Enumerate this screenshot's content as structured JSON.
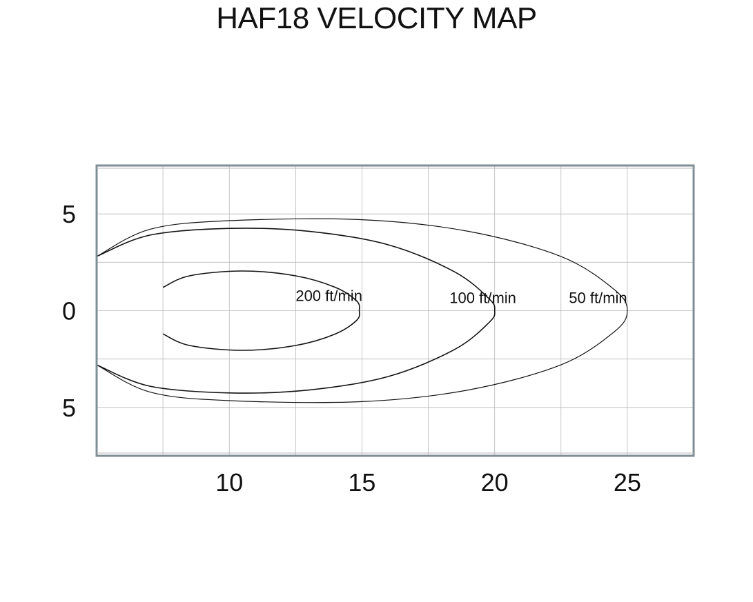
{
  "chart_data": {
    "type": "line",
    "title": "HAF18 VELOCITY MAP",
    "xlabel": "",
    "ylabel": "",
    "xlim": [
      5,
      27.5
    ],
    "ylim": [
      -7.5,
      7.5
    ],
    "x_ticks": [
      {
        "value": 10,
        "label": "10"
      },
      {
        "value": 15,
        "label": "15"
      },
      {
        "value": 20,
        "label": "20"
      },
      {
        "value": 25,
        "label": "25"
      }
    ],
    "y_ticks": [
      {
        "value": 5,
        "label": "5"
      },
      {
        "value": 0,
        "label": "0"
      },
      {
        "value": -5,
        "label": "5"
      }
    ],
    "grid": true,
    "series": [
      {
        "name": "200 ft/min",
        "color": "#111111",
        "label_at": [
          12.5,
          0.5
        ],
        "points": [
          [
            7.5,
            1.2
          ],
          [
            8.5,
            1.8
          ],
          [
            10.5,
            2.05
          ],
          [
            12.5,
            1.8
          ],
          [
            14.0,
            1.2
          ],
          [
            14.8,
            0.5
          ],
          [
            14.9,
            0.0
          ],
          [
            14.8,
            -0.5
          ],
          [
            14.0,
            -1.2
          ],
          [
            12.5,
            -1.8
          ],
          [
            10.5,
            -2.05
          ],
          [
            8.5,
            -1.8
          ],
          [
            7.5,
            -1.2
          ]
        ]
      },
      {
        "name": "100 ft/min",
        "color": "#111111",
        "label_at": [
          18.3,
          0.4
        ],
        "points": [
          [
            5.0,
            2.8
          ],
          [
            7.0,
            3.9
          ],
          [
            10.0,
            4.25
          ],
          [
            13.0,
            4.1
          ],
          [
            16.0,
            3.4
          ],
          [
            18.5,
            2.0
          ],
          [
            19.8,
            0.6
          ],
          [
            20.0,
            0.0
          ],
          [
            19.8,
            -0.6
          ],
          [
            18.5,
            -2.0
          ],
          [
            16.0,
            -3.4
          ],
          [
            13.0,
            -4.1
          ],
          [
            10.0,
            -4.25
          ],
          [
            7.0,
            -3.9
          ],
          [
            5.0,
            -2.8
          ]
        ]
      },
      {
        "name": "50 ft/min",
        "color": "#111111",
        "label_at": [
          22.8,
          0.4
        ],
        "points": [
          [
            5.0,
            2.8
          ],
          [
            7.0,
            4.2
          ],
          [
            10.0,
            4.65
          ],
          [
            15.0,
            4.7
          ],
          [
            19.0,
            4.1
          ],
          [
            22.5,
            2.8
          ],
          [
            24.5,
            1.1
          ],
          [
            25.0,
            0.0
          ],
          [
            24.5,
            -1.1
          ],
          [
            22.5,
            -2.8
          ],
          [
            19.0,
            -4.1
          ],
          [
            15.0,
            -4.7
          ],
          [
            10.0,
            -4.65
          ],
          [
            7.0,
            -4.2
          ],
          [
            5.0,
            -2.8
          ]
        ]
      }
    ]
  }
}
